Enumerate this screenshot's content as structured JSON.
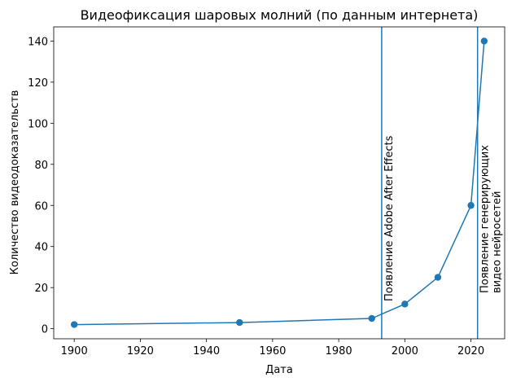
{
  "chart_data": {
    "type": "line",
    "title": "Видеофиксация шаровых молний (по данным интернета)",
    "x_label": "Дата",
    "y_label": "Количество видеодоказательств",
    "x": [
      1900,
      1950,
      1990,
      2000,
      2010,
      2020,
      2024
    ],
    "series": [
      {
        "color": "#1f77b4",
        "values": [
          2,
          3,
          5,
          12,
          25,
          60,
          140
        ]
      }
    ],
    "xlim": [
      1893.8,
      2030.2
    ],
    "ylim": [
      -4.9,
      146.9
    ],
    "xticks": [
      1900,
      1920,
      1940,
      1960,
      1980,
      2000,
      2020
    ],
    "yticks": [
      0,
      20,
      40,
      60,
      80,
      100,
      120,
      140
    ],
    "vlines": [
      {
        "x": 1993,
        "color": "#1f77b4",
        "label_lines": [
          "Появление Adobe After Effects"
        ]
      },
      {
        "x": 2022,
        "color": "#1f77b4",
        "label_lines": [
          "Появление генерирующих",
          "видео нейросетей"
        ]
      }
    ],
    "grid": false
  }
}
